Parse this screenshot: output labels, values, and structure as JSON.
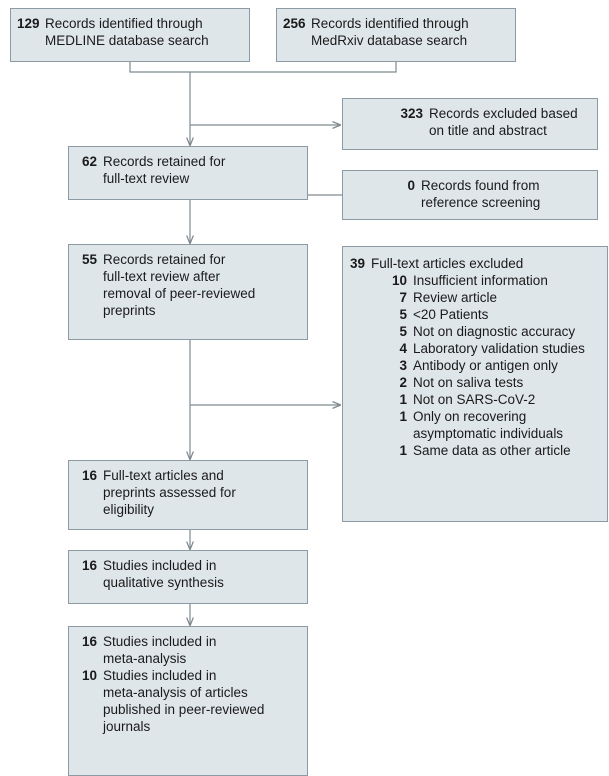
{
  "nodes": [
    {
      "items": [
        {
          "count": 129,
          "lines": [
            "Records identified through",
            "MEDLINE database search"
          ]
        }
      ]
    },
    {
      "items": [
        {
          "count": 256,
          "lines": [
            "Records identified through",
            "MedRxiv database search"
          ]
        }
      ]
    },
    {
      "items": [
        {
          "count": 323,
          "lines": [
            "Records excluded based",
            "on title and abstract"
          ]
        }
      ]
    },
    {
      "items": [
        {
          "count": 62,
          "lines": [
            "Records retained for",
            "full-text review"
          ]
        }
      ]
    },
    {
      "items": [
        {
          "count": 0,
          "lines": [
            "Records found from",
            "reference screening"
          ]
        }
      ]
    },
    {
      "items": [
        {
          "count": 55,
          "lines": [
            "Records retained for",
            "full-text review after",
            "removal of peer-reviewed",
            "preprints"
          ]
        }
      ]
    },
    {
      "items": [
        {
          "count": 16,
          "lines": [
            "Full-text articles and",
            "preprints assessed for",
            "eligibility"
          ]
        }
      ]
    },
    {
      "items": [
        {
          "count": 16,
          "lines": [
            "Studies included in",
            "qualitative synthesis"
          ]
        }
      ]
    },
    {
      "items": [
        {
          "count": 16,
          "lines": [
            "Studies included in",
            "meta-analysis"
          ]
        },
        {
          "count": 10,
          "lines": [
            "Studies included in",
            "meta-analysis of articles",
            "published in peer-reviewed",
            "journals"
          ]
        }
      ]
    }
  ],
  "exclusions": {
    "count": 39,
    "label": "Full-text articles excluded",
    "reasons": [
      {
        "count": 10,
        "lines": [
          "Insufficient information"
        ]
      },
      {
        "count": 7,
        "lines": [
          "Review article"
        ]
      },
      {
        "count": 5,
        "lines": [
          "<20 Patients"
        ]
      },
      {
        "count": 5,
        "lines": [
          "Not on diagnostic accuracy"
        ]
      },
      {
        "count": 4,
        "lines": [
          "Laboratory validation studies"
        ]
      },
      {
        "count": 3,
        "lines": [
          "Antibody or antigen only"
        ]
      },
      {
        "count": 2,
        "lines": [
          "Not on saliva tests"
        ]
      },
      {
        "count": 1,
        "lines": [
          "Not on SARS-CoV-2"
        ]
      },
      {
        "count": 1,
        "lines": [
          "Only on recovering",
          "asymptomatic individuals"
        ]
      },
      {
        "count": 1,
        "lines": [
          "Same data as other article"
        ]
      }
    ]
  }
}
